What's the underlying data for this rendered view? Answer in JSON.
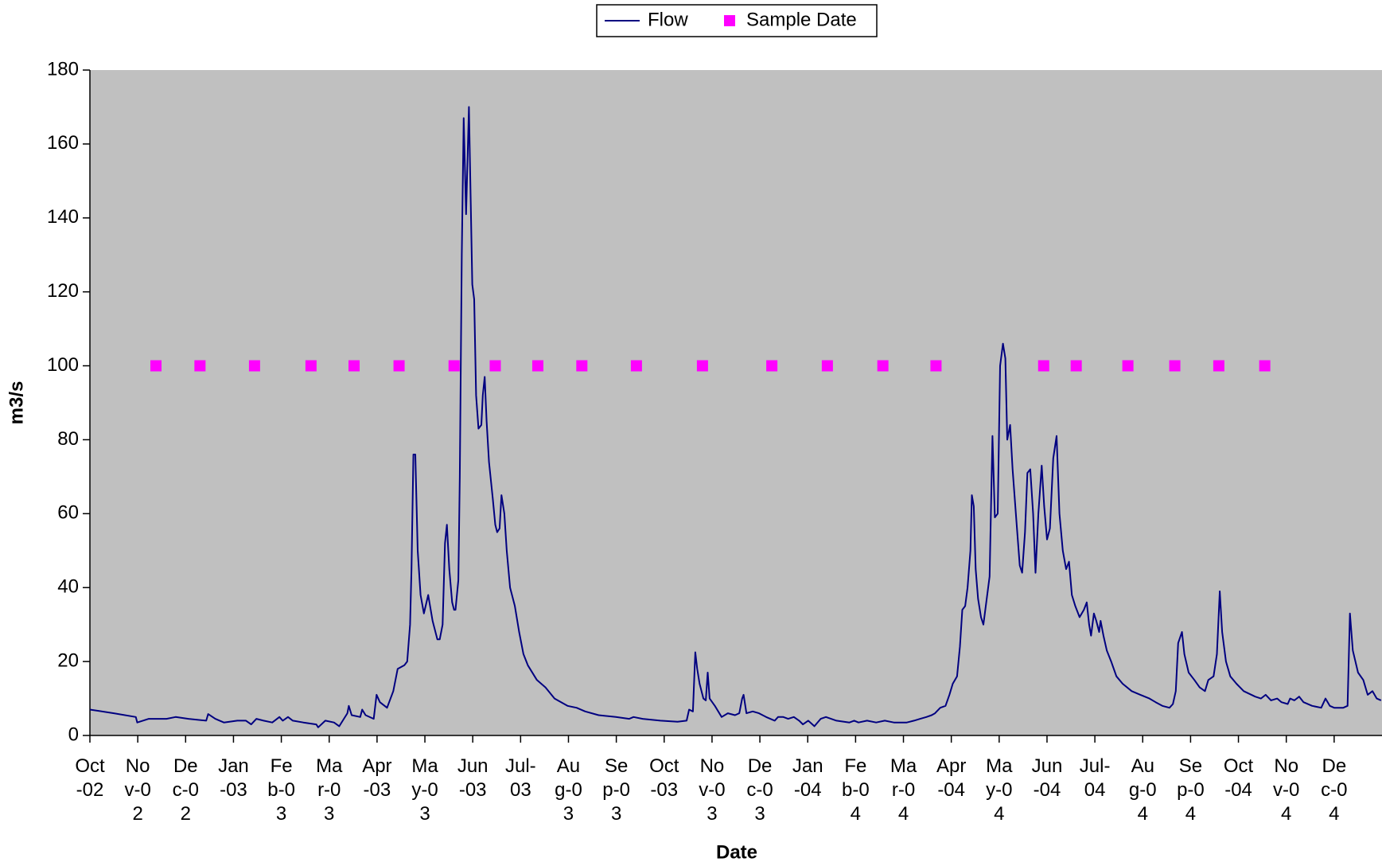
{
  "chart_data": {
    "type": "line",
    "x_label": "Date",
    "y_label": "m3/s",
    "xlim": [
      0,
      27
    ],
    "ylim": [
      0,
      180
    ],
    "yticks": [
      0,
      20,
      40,
      60,
      80,
      100,
      120,
      140,
      160,
      180
    ],
    "xticks": [
      {
        "value": 0,
        "label": "Oct-02"
      },
      {
        "value": 1,
        "label": "Nov-02"
      },
      {
        "value": 2,
        "label": "Dec-02"
      },
      {
        "value": 3,
        "label": "Jan-03"
      },
      {
        "value": 4,
        "label": "Feb-03"
      },
      {
        "value": 5,
        "label": "Mar-03"
      },
      {
        "value": 6,
        "label": "Apr-03"
      },
      {
        "value": 7,
        "label": "May-03"
      },
      {
        "value": 8,
        "label": "Jun-03"
      },
      {
        "value": 9,
        "label": "Jul-03"
      },
      {
        "value": 10,
        "label": "Aug-03"
      },
      {
        "value": 11,
        "label": "Sep-03"
      },
      {
        "value": 12,
        "label": "Oct-03"
      },
      {
        "value": 13,
        "label": "Nov-03"
      },
      {
        "value": 14,
        "label": "Dec-03"
      },
      {
        "value": 15,
        "label": "Jan-04"
      },
      {
        "value": 16,
        "label": "Feb-04"
      },
      {
        "value": 17,
        "label": "Mar-04"
      },
      {
        "value": 18,
        "label": "Apr-04"
      },
      {
        "value": 19,
        "label": "May-04"
      },
      {
        "value": 20,
        "label": "Jun-04"
      },
      {
        "value": 21,
        "label": "Jul-04"
      },
      {
        "value": 22,
        "label": "Aug-04"
      },
      {
        "value": 23,
        "label": "Sep-04"
      },
      {
        "value": 24,
        "label": "Oct-04"
      },
      {
        "value": 25,
        "label": "Nov-04"
      },
      {
        "value": 26,
        "label": "Dec-04"
      }
    ],
    "plot_background": "#c0c0c0",
    "legend": "top",
    "series": [
      {
        "name": "Flow",
        "type": "line",
        "color": "#000080",
        "x": [
          0,
          0.5,
          0.96,
          0.99,
          1.23,
          1.6,
          1.79,
          2.06,
          2.43,
          2.47,
          2.62,
          2.8,
          3.08,
          3.26,
          3.37,
          3.48,
          3.63,
          3.81,
          3.96,
          4.03,
          4.14,
          4.24,
          4.46,
          4.73,
          4.77,
          4.92,
          5.1,
          5.21,
          5.38,
          5.41,
          5.47,
          5.65,
          5.69,
          5.76,
          5.93,
          5.99,
          6.06,
          6.21,
          6.34,
          6.43,
          6.57,
          6.63,
          6.69,
          6.72,
          6.76,
          6.8,
          6.85,
          6.91,
          6.98,
          7.07,
          7.16,
          7.26,
          7.31,
          7.37,
          7.42,
          7.46,
          7.51,
          7.57,
          7.61,
          7.64,
          7.7,
          7.73,
          7.77,
          7.81,
          7.86,
          7.92,
          7.99,
          8.03,
          8.07,
          8.12,
          8.18,
          8.21,
          8.25,
          8.29,
          8.34,
          8.42,
          8.47,
          8.51,
          8.56,
          8.6,
          8.66,
          8.71,
          8.78,
          8.88,
          8.97,
          9.06,
          9.15,
          9.34,
          9.52,
          9.71,
          9.98,
          10.17,
          10.35,
          10.63,
          10.99,
          11.27,
          11.36,
          11.55,
          11.92,
          12.28,
          12.47,
          12.52,
          12.6,
          12.65,
          12.69,
          12.74,
          12.82,
          12.87,
          12.91,
          12.95,
          13.06,
          13.2,
          13.33,
          13.48,
          13.57,
          13.63,
          13.66,
          13.72,
          13.85,
          13.98,
          14.13,
          14.31,
          14.38,
          14.49,
          14.59,
          14.71,
          14.82,
          14.9,
          15.01,
          15.14,
          15.27,
          15.38,
          15.6,
          15.87,
          15.97,
          16.06,
          16.24,
          16.43,
          16.61,
          16.8,
          17.07,
          17.22,
          17.35,
          17.48,
          17.59,
          17.66,
          17.77,
          17.88,
          17.96,
          18.03,
          18.12,
          18.18,
          18.23,
          18.29,
          18.34,
          18.4,
          18.43,
          18.47,
          18.51,
          18.56,
          18.62,
          18.67,
          18.75,
          18.8,
          18.86,
          18.91,
          18.97,
          19.02,
          19.08,
          19.13,
          19.17,
          19.23,
          19.28,
          19.36,
          19.43,
          19.48,
          19.54,
          19.59,
          19.65,
          19.71,
          19.76,
          19.82,
          19.89,
          19.94,
          20.0,
          20.06,
          20.13,
          20.2,
          20.26,
          20.33,
          20.4,
          20.46,
          20.52,
          20.59,
          20.68,
          20.77,
          20.83,
          20.88,
          20.92,
          20.98,
          21.03,
          21.09,
          21.12,
          21.18,
          21.25,
          21.34,
          21.45,
          21.58,
          21.77,
          21.95,
          22.14,
          22.27,
          22.41,
          22.56,
          22.63,
          22.69,
          22.74,
          22.82,
          22.87,
          22.96,
          23.08,
          23.19,
          23.3,
          23.37,
          23.48,
          23.55,
          23.61,
          23.66,
          23.74,
          23.83,
          23.96,
          24.11,
          24.35,
          24.47,
          24.57,
          24.68,
          24.81,
          24.9,
          25.03,
          25.08,
          25.17,
          25.27,
          25.36,
          25.54,
          25.73,
          25.82,
          25.91,
          26.0,
          26.19,
          26.28,
          26.33,
          26.39,
          26.5,
          26.61,
          26.7,
          26.8,
          26.89,
          26.98
        ],
        "values": [
          7,
          6,
          5,
          3.5,
          4.5,
          4.5,
          5,
          4.5,
          4,
          5.8,
          4.5,
          3.5,
          4,
          4,
          3,
          4.5,
          4,
          3.5,
          5,
          4,
          5,
          4,
          3.5,
          3,
          2.2,
          4,
          3.5,
          2.5,
          6,
          8,
          5.5,
          5,
          7,
          5.5,
          4.5,
          11,
          9,
          7.5,
          12,
          18,
          19,
          20,
          30,
          45,
          76,
          76,
          50,
          38,
          33,
          38,
          31,
          26,
          26,
          30,
          52,
          57,
          45,
          36,
          34,
          34,
          42,
          70,
          130,
          167,
          141,
          170,
          122,
          118,
          92,
          83,
          84,
          92,
          97,
          85,
          74,
          64,
          57,
          55,
          56,
          65,
          60,
          50,
          40,
          35,
          28,
          22,
          19,
          15,
          13,
          10,
          8,
          7.5,
          6.5,
          5.5,
          5,
          4.5,
          5,
          4.5,
          4,
          3.7,
          4,
          7,
          6.5,
          22.5,
          18,
          14,
          10,
          9.5,
          17,
          10,
          8,
          5,
          6,
          5.5,
          6,
          10,
          11,
          6,
          6.5,
          6,
          5,
          4,
          5,
          5,
          4.5,
          5,
          4,
          3,
          4,
          2.5,
          4.5,
          5,
          4,
          3.5,
          4,
          3.5,
          4,
          3.5,
          4,
          3.5,
          3.5,
          4,
          4.5,
          5,
          5.5,
          6,
          7.5,
          8,
          11,
          14,
          16,
          24,
          34,
          35,
          40,
          50,
          65,
          62,
          45,
          37,
          32,
          30,
          38,
          43,
          81,
          59,
          60,
          100,
          106,
          102,
          80,
          84,
          72,
          58,
          46,
          44,
          55,
          71,
          72,
          60,
          44,
          60,
          73,
          62,
          53,
          56,
          75,
          81,
          60,
          50,
          45,
          47,
          38,
          35,
          32,
          34,
          36,
          30,
          27,
          33,
          31,
          28,
          31,
          27,
          23,
          20,
          16,
          14,
          12,
          11,
          10,
          9,
          8,
          7.5,
          8.5,
          12,
          25,
          28,
          22,
          17,
          15,
          13,
          12,
          15,
          16,
          22,
          39,
          28,
          20,
          16,
          14,
          12,
          10.5,
          10,
          11,
          9.5,
          10,
          9,
          8.5,
          10,
          9.5,
          10.5,
          9,
          8,
          7.5,
          10,
          8,
          7.5,
          7.5,
          8,
          33,
          23,
          17,
          15,
          11,
          12,
          10,
          9.5
        ]
      },
      {
        "name": "Sample Date",
        "type": "scatter",
        "marker": "square",
        "color": "#ff00ff",
        "x": [
          1.38,
          2.3,
          3.44,
          4.62,
          5.52,
          6.46,
          7.61,
          8.47,
          9.36,
          10.28,
          11.42,
          12.8,
          14.25,
          15.41,
          16.57,
          17.68,
          19.93,
          20.61,
          21.69,
          22.67,
          23.59,
          24.55
        ],
        "values": [
          100,
          100,
          100,
          100,
          100,
          100,
          100,
          100,
          100,
          100,
          100,
          100,
          100,
          100,
          100,
          100,
          100,
          100,
          100,
          100,
          100,
          100
        ]
      }
    ]
  }
}
